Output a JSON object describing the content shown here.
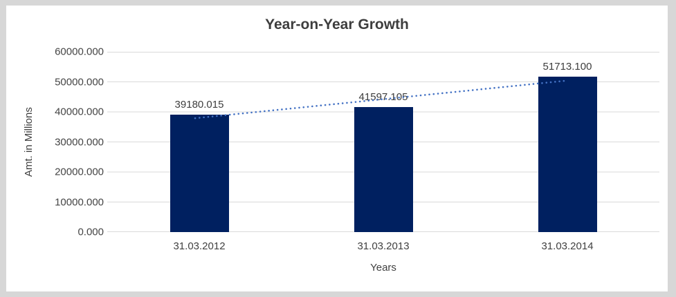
{
  "chart_data": {
    "type": "bar",
    "title": "Year-on-Year Growth",
    "xlabel": "Years",
    "ylabel": "Amt. in Millions",
    "categories": [
      "31.03.2012",
      "31.03.2013",
      "31.03.2014"
    ],
    "values": [
      39180.015,
      41597.105,
      51713.1
    ],
    "data_labels": [
      "39180.015",
      "41597.105",
      "51713.100"
    ],
    "ylim": [
      0,
      60000
    ],
    "ytick_step": 10000,
    "ytick_labels": [
      "0.000",
      "10000.000",
      "20000.000",
      "30000.000",
      "40000.000",
      "50000.000",
      "60000.000"
    ],
    "grid": true,
    "legend": "none",
    "trendline": {
      "type": "linear",
      "style": "dotted",
      "color": "#4472C4"
    },
    "bar_color": "#002060",
    "gridline_color": "#D9D9D9",
    "frame_color": "#d7d7d7",
    "text_color": "#404040",
    "title_color": "#3d3d3d"
  }
}
